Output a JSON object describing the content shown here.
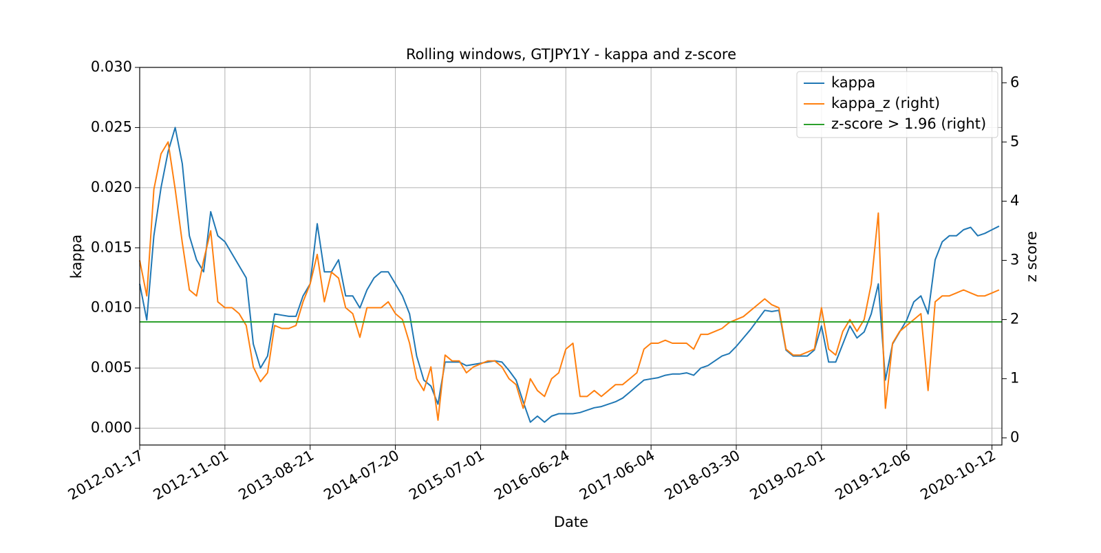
{
  "chart_data": {
    "type": "line",
    "title": "Rolling windows, GTJPY1Y - kappa and z-score",
    "x_label": "Date",
    "y_label": "kappa",
    "y2_label": "z score",
    "categories": [
      "2012-01-17",
      null,
      null,
      null,
      null,
      null,
      null,
      null,
      null,
      null,
      null,
      null,
      "2012-11-01",
      null,
      null,
      null,
      null,
      null,
      null,
      null,
      null,
      null,
      null,
      null,
      "2013-08-21",
      null,
      null,
      null,
      null,
      null,
      null,
      null,
      null,
      null,
      null,
      null,
      "2014-07-20",
      null,
      null,
      null,
      null,
      null,
      null,
      null,
      null,
      null,
      null,
      null,
      "2015-07-01",
      null,
      null,
      null,
      null,
      null,
      null,
      null,
      null,
      null,
      null,
      null,
      "2016-06-24",
      null,
      null,
      null,
      null,
      null,
      null,
      null,
      null,
      null,
      null,
      null,
      "2017-06-04",
      null,
      null,
      null,
      null,
      null,
      null,
      null,
      null,
      null,
      null,
      null,
      "2018-03-30",
      null,
      null,
      null,
      null,
      null,
      null,
      null,
      null,
      null,
      null,
      null,
      "2019-02-01",
      null,
      null,
      null,
      null,
      null,
      null,
      null,
      null,
      null,
      null,
      null,
      "2019-12-06",
      null,
      null,
      null,
      null,
      null,
      null,
      null,
      null,
      null,
      null,
      null,
      "2020-10-12",
      null
    ],
    "series": [
      {
        "name": "kappa",
        "color": "#1f77b4",
        "values": [
          0.012,
          0.009,
          0.016,
          0.02,
          0.023,
          0.025,
          0.022,
          0.016,
          0.014,
          0.013,
          0.018,
          0.016,
          0.0155,
          0.0145,
          0.0135,
          0.0125,
          0.007,
          0.005,
          0.006,
          0.0095,
          0.0094,
          0.0093,
          0.0093,
          0.011,
          0.012,
          0.017,
          0.013,
          0.013,
          0.014,
          0.011,
          0.011,
          0.01,
          0.0115,
          0.0125,
          0.013,
          0.013,
          0.012,
          0.011,
          0.0095,
          0.006,
          0.004,
          0.0035,
          0.002,
          0.0055,
          0.0055,
          0.0055,
          0.0052,
          0.0053,
          0.0054,
          0.0055,
          0.0056,
          0.0055,
          0.0048,
          0.004,
          0.0022,
          0.0005,
          0.001,
          0.0005,
          0.001,
          0.0012,
          0.0012,
          0.0012,
          0.0013,
          0.0015,
          0.0017,
          0.0018,
          0.002,
          0.0022,
          0.0025,
          0.003,
          0.0035,
          0.004,
          0.0041,
          0.0042,
          0.0044,
          0.0045,
          0.0045,
          0.0046,
          0.0044,
          0.005,
          0.0052,
          0.0056,
          0.006,
          0.0062,
          0.0068,
          0.0075,
          0.0082,
          0.009,
          0.0098,
          0.0097,
          0.0098,
          0.0065,
          0.006,
          0.006,
          0.006,
          0.0065,
          0.0085,
          0.0055,
          0.0055,
          0.007,
          0.0085,
          0.0075,
          0.008,
          0.0095,
          0.012,
          0.004,
          0.007,
          0.008,
          0.009,
          0.0105,
          0.011,
          0.0095,
          0.014,
          0.0155,
          0.016,
          0.016,
          0.0165,
          0.0167,
          0.016,
          0.0162,
          0.0165,
          0.0168
        ]
      },
      {
        "name": "kappa_z (right)",
        "color": "#ff7f0e",
        "axis": "y2",
        "values": [
          3.0,
          2.4,
          4.2,
          4.8,
          5.0,
          4.2,
          3.3,
          2.5,
          2.4,
          3.0,
          3.5,
          2.3,
          2.2,
          2.2,
          2.1,
          1.9,
          1.2,
          0.95,
          1.1,
          1.9,
          1.85,
          1.85,
          1.9,
          2.3,
          2.6,
          3.1,
          2.3,
          2.8,
          2.7,
          2.2,
          2.1,
          1.7,
          2.2,
          2.2,
          2.2,
          2.3,
          2.1,
          2.0,
          1.6,
          1.0,
          0.8,
          1.2,
          0.3,
          1.4,
          1.3,
          1.3,
          1.1,
          1.2,
          1.25,
          1.3,
          1.3,
          1.2,
          1.0,
          0.9,
          0.5,
          1.0,
          0.8,
          0.7,
          1.0,
          1.1,
          1.5,
          1.6,
          0.7,
          0.7,
          0.8,
          0.7,
          0.8,
          0.9,
          0.9,
          1.0,
          1.1,
          1.5,
          1.6,
          1.6,
          1.65,
          1.6,
          1.6,
          1.6,
          1.5,
          1.75,
          1.75,
          1.8,
          1.85,
          1.95,
          2.0,
          2.05,
          2.15,
          2.25,
          2.35,
          2.25,
          2.2,
          1.5,
          1.4,
          1.4,
          1.45,
          1.5,
          2.2,
          1.5,
          1.4,
          1.8,
          2.0,
          1.8,
          2.0,
          2.6,
          3.8,
          0.5,
          1.6,
          1.8,
          1.9,
          2.0,
          2.1,
          0.8,
          2.3,
          2.4,
          2.4,
          2.45,
          2.5,
          2.45,
          2.4,
          2.4,
          2.45,
          2.5
        ]
      },
      {
        "name": "z-score > 1.96 (right)",
        "color": "#2ca02c",
        "axis": "y2",
        "y": 1.96
      }
    ],
    "ylim": [
      -0.0014,
      0.03
    ],
    "yticks": [
      {
        "value": 0,
        "label": "0.000"
      },
      {
        "value": 0.005,
        "label": "0.005"
      },
      {
        "value": 0.01,
        "label": "0.010"
      },
      {
        "value": 0.015,
        "label": "0.015"
      },
      {
        "value": 0.02,
        "label": "0.020"
      },
      {
        "value": 0.025,
        "label": "0.025"
      },
      {
        "value": 0.03,
        "label": "0.030"
      }
    ],
    "y2lim": [
      -0.12,
      6.26
    ],
    "y2ticks": [
      0,
      1,
      2,
      3,
      4,
      5,
      6
    ],
    "grid": true,
    "legend": "upper right"
  }
}
